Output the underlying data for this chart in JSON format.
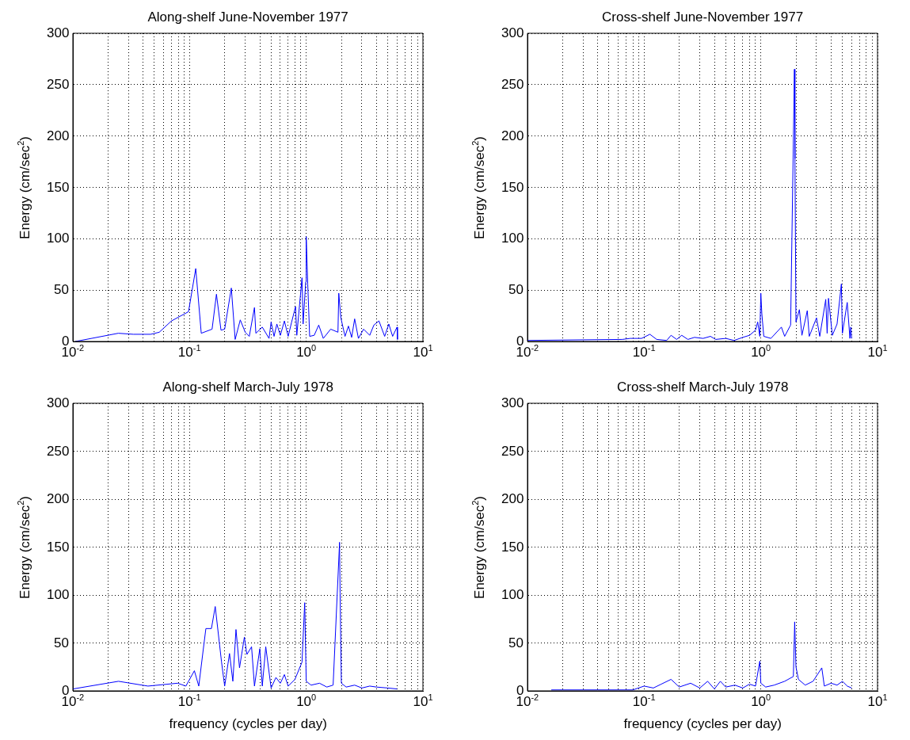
{
  "chart_data": [
    {
      "type": "line",
      "title": "Along-shelf June-November 1977",
      "ylabel": "Energy (cm/sec$^{2}$)",
      "log": "x",
      "grid": true,
      "xlim": [
        0.01,
        10
      ],
      "ylim": [
        0,
        300
      ],
      "yticks": [
        0,
        50,
        100,
        150,
        200,
        250,
        300
      ],
      "xticks": [
        {
          "value": 0.01,
          "label": "10$^{-2}$"
        },
        {
          "value": 0.02,
          "label": null
        },
        {
          "value": 0.03,
          "label": null
        },
        {
          "value": 0.04,
          "label": null
        },
        {
          "value": 0.05,
          "label": null
        },
        {
          "value": 0.06,
          "label": null
        },
        {
          "value": 0.07,
          "label": null
        },
        {
          "value": 0.08,
          "label": null
        },
        {
          "value": 0.09,
          "label": null
        },
        {
          "value": 0.1,
          "label": "10$^{-1}$"
        },
        {
          "value": 0.2,
          "label": null
        },
        {
          "value": 0.3,
          "label": null
        },
        {
          "value": 0.4,
          "label": null
        },
        {
          "value": 0.5,
          "label": null
        },
        {
          "value": 0.6,
          "label": null
        },
        {
          "value": 0.7,
          "label": null
        },
        {
          "value": 0.8,
          "label": null
        },
        {
          "value": 0.9,
          "label": null
        },
        {
          "value": 1,
          "label": "10$^{0}$"
        },
        {
          "value": 2,
          "label": null
        },
        {
          "value": 3,
          "label": null
        },
        {
          "value": 4,
          "label": null
        },
        {
          "value": 5,
          "label": null
        },
        {
          "value": 6,
          "label": null
        },
        {
          "value": 7,
          "label": null
        },
        {
          "value": 8,
          "label": null
        },
        {
          "value": 9,
          "label": null
        },
        {
          "value": 10,
          "label": "10$^{1}$"
        }
      ],
      "series": [
        {
          "color": "#0000ff",
          "x": [
            0.0105,
            0.0245,
            0.033,
            0.0464,
            0.055,
            0.07,
            0.098,
            0.113,
            0.126,
            0.156,
            0.17,
            0.186,
            0.2,
            0.228,
            0.246,
            0.272,
            0.3,
            0.325,
            0.36,
            0.37,
            0.42,
            0.48,
            0.5,
            0.53,
            0.56,
            0.6,
            0.65,
            0.7,
            0.75,
            0.81,
            0.83,
            0.92,
            0.94,
            0.99,
            1.0,
            1.03,
            1.07,
            1.17,
            1.28,
            1.4,
            1.62,
            1.87,
            1.9,
            1.98,
            2.15,
            2.3,
            2.45,
            2.6,
            2.8,
            3.1,
            3.5,
            3.8,
            4.2,
            4.7,
            5.1,
            5.5,
            6.0,
            6.05
          ],
          "values": [
            0,
            8,
            7,
            7,
            9,
            20,
            29,
            71,
            8,
            12,
            46,
            11,
            12,
            52,
            2,
            21,
            9,
            5,
            33,
            8,
            14,
            3,
            19,
            5,
            17,
            6,
            20,
            5,
            19,
            34,
            6,
            62,
            17,
            58,
            102,
            56,
            5,
            6,
            16,
            3,
            12,
            9,
            47,
            23,
            5,
            15,
            4,
            22,
            3,
            12,
            6,
            16,
            20,
            5,
            17,
            5,
            14,
            2
          ]
        }
      ]
    },
    {
      "type": "line",
      "title": "Cross-shelf June-November 1977",
      "ylabel": "Energy (cm/sec$^{2}$)",
      "log": "x",
      "grid": true,
      "xlim": [
        0.01,
        10
      ],
      "ylim": [
        0,
        300
      ],
      "yticks": [
        0,
        50,
        100,
        150,
        200,
        250,
        300
      ],
      "xticks": [
        {
          "value": 0.01,
          "label": "10$^{-2}$"
        },
        {
          "value": 0.02,
          "label": null
        },
        {
          "value": 0.03,
          "label": null
        },
        {
          "value": 0.04,
          "label": null
        },
        {
          "value": 0.05,
          "label": null
        },
        {
          "value": 0.06,
          "label": null
        },
        {
          "value": 0.07,
          "label": null
        },
        {
          "value": 0.08,
          "label": null
        },
        {
          "value": 0.09,
          "label": null
        },
        {
          "value": 0.1,
          "label": "10$^{-1}$"
        },
        {
          "value": 0.2,
          "label": null
        },
        {
          "value": 0.3,
          "label": null
        },
        {
          "value": 0.4,
          "label": null
        },
        {
          "value": 0.5,
          "label": null
        },
        {
          "value": 0.6,
          "label": null
        },
        {
          "value": 0.7,
          "label": null
        },
        {
          "value": 0.8,
          "label": null
        },
        {
          "value": 0.9,
          "label": null
        },
        {
          "value": 1,
          "label": "10$^{0}$"
        },
        {
          "value": 2,
          "label": null
        },
        {
          "value": 3,
          "label": null
        },
        {
          "value": 4,
          "label": null
        },
        {
          "value": 5,
          "label": null
        },
        {
          "value": 6,
          "label": null
        },
        {
          "value": 7,
          "label": null
        },
        {
          "value": 8,
          "label": null
        },
        {
          "value": 9,
          "label": null
        },
        {
          "value": 10,
          "label": "10$^{1}$"
        }
      ],
      "series": [
        {
          "color": "#0000ff",
          "x": [
            0.01,
            0.065,
            0.076,
            0.095,
            0.112,
            0.128,
            0.156,
            0.17,
            0.19,
            0.21,
            0.237,
            0.27,
            0.32,
            0.37,
            0.41,
            0.5,
            0.59,
            0.7,
            0.8,
            0.9,
            0.94,
            0.98,
            1.0,
            1.02,
            1.06,
            1.22,
            1.5,
            1.6,
            1.8,
            1.94,
            1.96,
            2.0,
            2.14,
            2.25,
            2.5,
            2.6,
            3.0,
            3.2,
            3.6,
            3.7,
            3.8,
            4.1,
            4.5,
            4.9,
            5.0,
            5.5,
            5.8,
            5.9,
            6.0
          ],
          "values": [
            1,
            2,
            3,
            3,
            7,
            2,
            1,
            6,
            2,
            6,
            2,
            4,
            3,
            5,
            2,
            3,
            1,
            4,
            6,
            11,
            19,
            5,
            47,
            27,
            5,
            3,
            14,
            5,
            16,
            265,
            178,
            19,
            31,
            6,
            30,
            5,
            23,
            5,
            41,
            8,
            42,
            6,
            17,
            56,
            8,
            38,
            3,
            14,
            3
          ]
        }
      ]
    },
    {
      "type": "line",
      "title": "Along-shelf March-July 1978",
      "xlabel": "frequency (cycles per day)",
      "ylabel": "Energy (cm/sec$^{2}$)",
      "log": "x",
      "grid": true,
      "xlim": [
        0.01,
        10
      ],
      "ylim": [
        0,
        300
      ],
      "yticks": [
        0,
        50,
        100,
        150,
        200,
        250,
        300
      ],
      "xticks": [
        {
          "value": 0.01,
          "label": "10$^{-2}$"
        },
        {
          "value": 0.02,
          "label": null
        },
        {
          "value": 0.03,
          "label": null
        },
        {
          "value": 0.04,
          "label": null
        },
        {
          "value": 0.05,
          "label": null
        },
        {
          "value": 0.06,
          "label": null
        },
        {
          "value": 0.07,
          "label": null
        },
        {
          "value": 0.08,
          "label": null
        },
        {
          "value": 0.09,
          "label": null
        },
        {
          "value": 0.1,
          "label": "10$^{-1}$"
        },
        {
          "value": 0.2,
          "label": null
        },
        {
          "value": 0.3,
          "label": null
        },
        {
          "value": 0.4,
          "label": null
        },
        {
          "value": 0.5,
          "label": null
        },
        {
          "value": 0.6,
          "label": null
        },
        {
          "value": 0.7,
          "label": null
        },
        {
          "value": 0.8,
          "label": null
        },
        {
          "value": 0.9,
          "label": null
        },
        {
          "value": 1,
          "label": "10$^{0}$"
        },
        {
          "value": 2,
          "label": null
        },
        {
          "value": 3,
          "label": null
        },
        {
          "value": 4,
          "label": null
        },
        {
          "value": 5,
          "label": null
        },
        {
          "value": 6,
          "label": null
        },
        {
          "value": 7,
          "label": null
        },
        {
          "value": 8,
          "label": null
        },
        {
          "value": 9,
          "label": null
        },
        {
          "value": 10,
          "label": "10$^{1}$"
        }
      ],
      "series": [
        {
          "color": "#0000ff",
          "x": [
            0.01,
            0.0246,
            0.044,
            0.079,
            0.093,
            0.11,
            0.12,
            0.131,
            0.138,
            0.154,
            0.166,
            0.188,
            0.2,
            0.22,
            0.235,
            0.25,
            0.268,
            0.295,
            0.31,
            0.34,
            0.36,
            0.4,
            0.42,
            0.45,
            0.5,
            0.55,
            0.6,
            0.65,
            0.7,
            0.8,
            0.92,
            0.97,
            1.0,
            1.1,
            1.3,
            1.5,
            1.7,
            1.93,
            1.95,
            2.0,
            2.2,
            2.6,
            3.0,
            3.5,
            4.0,
            5.0,
            6.0
          ],
          "values": [
            2,
            10,
            5,
            8,
            5,
            21,
            5,
            43,
            65,
            65,
            88,
            30,
            5,
            39,
            10,
            64,
            24,
            56,
            38,
            46,
            5,
            44,
            5,
            46,
            3,
            14,
            8,
            17,
            5,
            12,
            30,
            92,
            10,
            6,
            8,
            4,
            6,
            155,
            102,
            8,
            4,
            6,
            3,
            5,
            4,
            3,
            2
          ]
        }
      ]
    },
    {
      "type": "line",
      "title": "Cross-shelf March-July 1978",
      "xlabel": "frequency (cycles per day)",
      "ylabel": "Energy (cm/sec$^{2}$)",
      "log": "x",
      "grid": true,
      "xlim": [
        0.01,
        10
      ],
      "ylim": [
        0,
        300
      ],
      "yticks": [
        0,
        50,
        100,
        150,
        200,
        250,
        300
      ],
      "xticks": [
        {
          "value": 0.01,
          "label": "10$^{-2}$"
        },
        {
          "value": 0.02,
          "label": null
        },
        {
          "value": 0.03,
          "label": null
        },
        {
          "value": 0.04,
          "label": null
        },
        {
          "value": 0.05,
          "label": null
        },
        {
          "value": 0.06,
          "label": null
        },
        {
          "value": 0.07,
          "label": null
        },
        {
          "value": 0.08,
          "label": null
        },
        {
          "value": 0.09,
          "label": null
        },
        {
          "value": 0.1,
          "label": "10$^{-1}$"
        },
        {
          "value": 0.2,
          "label": null
        },
        {
          "value": 0.3,
          "label": null
        },
        {
          "value": 0.4,
          "label": null
        },
        {
          "value": 0.5,
          "label": null
        },
        {
          "value": 0.6,
          "label": null
        },
        {
          "value": 0.7,
          "label": null
        },
        {
          "value": 0.8,
          "label": null
        },
        {
          "value": 0.9,
          "label": null
        },
        {
          "value": 1,
          "label": "10$^{0}$"
        },
        {
          "value": 2,
          "label": null
        },
        {
          "value": 3,
          "label": null
        },
        {
          "value": 4,
          "label": null
        },
        {
          "value": 5,
          "label": null
        },
        {
          "value": 6,
          "label": null
        },
        {
          "value": 7,
          "label": null
        },
        {
          "value": 8,
          "label": null
        },
        {
          "value": 9,
          "label": null
        },
        {
          "value": 10,
          "label": "10$^{1}$"
        }
      ],
      "series": [
        {
          "color": "#0000ff",
          "x": [
            0.016,
            0.05,
            0.08,
            0.1,
            0.12,
            0.14,
            0.17,
            0.2,
            0.25,
            0.3,
            0.35,
            0.4,
            0.45,
            0.5,
            0.6,
            0.7,
            0.8,
            0.9,
            0.98,
            1.0,
            1.1,
            1.3,
            1.6,
            1.9,
            1.95,
            2.0,
            2.1,
            2.4,
            2.8,
            3.33,
            3.5,
            4.0,
            4.5,
            5.0,
            5.5,
            6.0
          ],
          "values": [
            1,
            1,
            1,
            5,
            3,
            7,
            12,
            4,
            8,
            3,
            10,
            2,
            10,
            4,
            6,
            3,
            7,
            5,
            31,
            8,
            4,
            6,
            10,
            15,
            72,
            25,
            12,
            6,
            10,
            24,
            5,
            8,
            6,
            10,
            5,
            3
          ]
        }
      ]
    }
  ]
}
